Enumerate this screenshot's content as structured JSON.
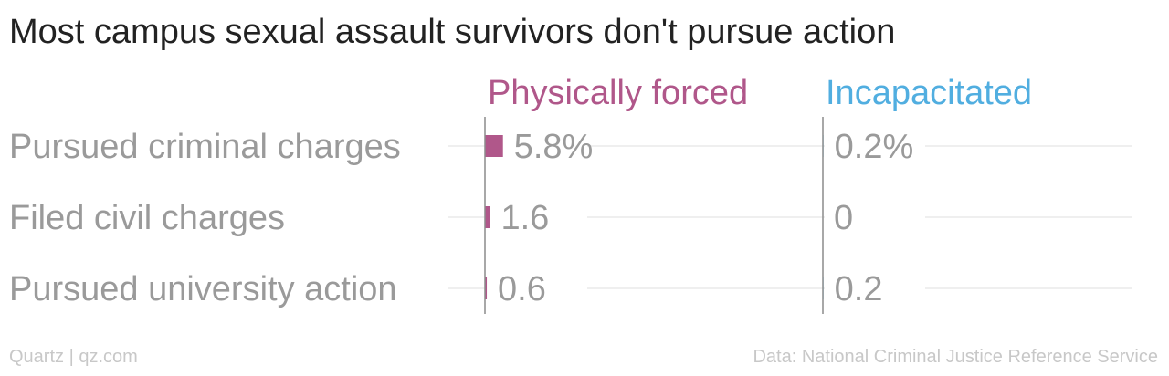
{
  "title": "Most campus sexual assault survivors don't pursue action",
  "footer": {
    "credit": "Quartz | qz.com",
    "source": "Data: National Criminal Justice Reference Service"
  },
  "chart_data": {
    "type": "bar",
    "orientation": "horizontal",
    "categories": [
      "Pursued criminal charges",
      "Filed civil charges",
      "Pursued university action"
    ],
    "series": [
      {
        "name": "Physically forced",
        "values": [
          5.8,
          1.6,
          0.6
        ],
        "labels": [
          "5.8%",
          "1.6",
          "0.6"
        ],
        "color": "#b0578a"
      },
      {
        "name": "Incapacitated",
        "values": [
          0.2,
          0,
          0.2
        ],
        "labels": [
          "0.2%",
          "0",
          "0.2"
        ],
        "color": "#51aee0"
      }
    ],
    "unit": "%",
    "xlim": [
      0,
      100
    ],
    "grid": true,
    "label_color": "#9a9a9a",
    "grid_color": "#eaeaea",
    "axis_color": "#8c8c8c"
  }
}
